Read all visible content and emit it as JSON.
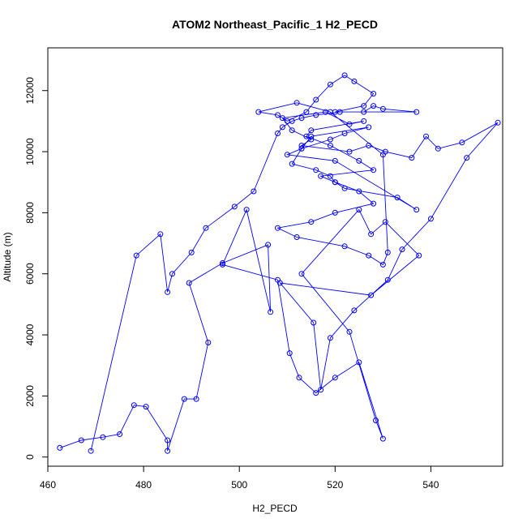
{
  "chart_data": {
    "type": "line",
    "title": "ATOM2 Northeast_Pacific_1 H2_PECD",
    "xlabel": "H2_PECD",
    "ylabel": "Altitude (m)",
    "xlim": [
      460,
      555
    ],
    "ylim": [
      -300,
      13400
    ],
    "xticks": [
      460,
      480,
      500,
      520,
      540
    ],
    "yticks": [
      0,
      2000,
      4000,
      6000,
      8000,
      10000,
      12000
    ],
    "grid": false,
    "legend": "none",
    "series": [
      {
        "color": "#0000ff",
        "marker": "open-circle",
        "x": [
          462.5,
          467,
          471.5,
          475,
          478,
          480.5,
          485,
          485,
          488.5,
          491,
          493.5,
          489.5,
          496.5,
          506,
          506.5,
          501.5,
          496.5,
          508,
          510.5,
          512.5,
          516,
          520,
          525,
          530,
          528.5,
          523,
          513,
          525,
          527.5,
          530.5,
          537.5,
          527.5,
          508.5,
          515.5,
          517,
          519,
          524,
          531,
          534,
          540,
          547.5,
          554,
          546.5,
          541.5,
          539,
          536,
          530.5,
          527,
          523,
          513,
          515,
          511,
          509,
          518,
          523,
          526,
          515,
          514,
          519,
          525,
          528,
          517,
          520,
          522,
          533,
          537,
          520,
          510,
          513,
          519,
          522,
          527,
          515,
          513,
          511,
          516,
          519,
          520,
          525,
          528,
          520,
          515,
          508,
          512,
          522,
          527,
          530,
          531,
          530,
          519,
          512,
          504,
          508,
          510,
          514,
          516,
          519,
          522,
          524,
          528,
          526,
          520,
          537,
          530,
          528,
          526,
          521,
          516,
          513,
          511,
          509,
          508,
          503,
          499,
          493,
          490,
          486,
          485,
          483.5,
          478.5,
          469
        ],
        "y": [
          300,
          550,
          650,
          750,
          1700,
          1650,
          550,
          200,
          1900,
          1900,
          3750,
          5700,
          6350,
          6950,
          4750,
          8100,
          6300,
          5800,
          3400,
          2600,
          2100,
          2600,
          3100,
          600,
          1200,
          4100,
          6000,
          8100,
          7300,
          7700,
          6600,
          5300,
          5700,
          4400,
          2200,
          3900,
          4800,
          5800,
          6800,
          7800,
          9800,
          10950,
          10300,
          10100,
          10500,
          9800,
          10000,
          10200,
          10000,
          10200,
          10400,
          10700,
          11100,
          11300,
          10900,
          11000,
          10700,
          10500,
          10200,
          9700,
          9400,
          9200,
          9000,
          8800,
          8500,
          8100,
          9700,
          9900,
          10100,
          10400,
          10600,
          10800,
          10500,
          10100,
          9600,
          9400,
          9200,
          9000,
          8700,
          8300,
          8000,
          7700,
          7500,
          7200,
          6900,
          6600,
          6300,
          6700,
          9900,
          11300,
          11600,
          11300,
          11200,
          11000,
          11300,
          11700,
          12200,
          12500,
          12300,
          11900,
          11500,
          11300,
          11300,
          11400,
          11500,
          11300,
          11300,
          11200,
          11100,
          11000,
          10800,
          10600,
          8700,
          8200,
          7500,
          6700,
          6000,
          5400,
          7300,
          6600,
          200
        ]
      }
    ]
  }
}
